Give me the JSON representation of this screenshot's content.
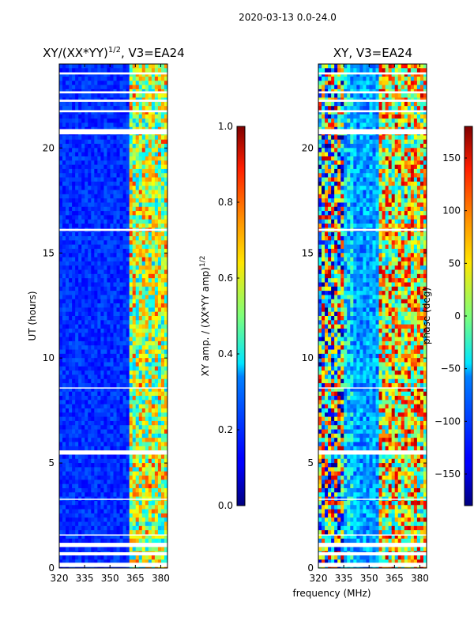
{
  "chart_data": [
    {
      "type": "heatmap",
      "id": "left",
      "suptitle": "2020-03-13 0.0-24.0",
      "title": "XY/(XX*YY)^1/2, V3=EA24",
      "xlabel": "",
      "ylabel": "UT (hours)",
      "xlim": [
        320,
        384
      ],
      "ylim": [
        0,
        24
      ],
      "xticks": [
        320,
        335,
        350,
        365,
        380
      ],
      "yticks": [
        0,
        5,
        10,
        15,
        20
      ],
      "colorbar": {
        "label": "XY amp. / (XX*YY amp)^1/2",
        "range": [
          0.0,
          1.0
        ],
        "ticks": [
          "0.0",
          "0.2",
          "0.4",
          "0.6",
          "0.8",
          "1.0"
        ],
        "colormap": "jet"
      },
      "flagged_hours": [
        [
          0.05,
          0.25
        ],
        [
          0.6,
          0.75
        ],
        [
          1.0,
          1.2
        ],
        [
          1.55,
          1.6
        ],
        [
          3.25,
          3.3
        ],
        [
          5.4,
          5.6
        ],
        [
          8.55,
          8.6
        ],
        [
          16.05,
          16.15
        ],
        [
          20.65,
          20.9
        ],
        [
          21.7,
          21.8
        ],
        [
          22.2,
          22.3
        ],
        [
          22.6,
          22.7
        ],
        [
          23.5,
          23.6
        ]
      ]
    },
    {
      "type": "heatmap",
      "id": "right",
      "title": "XY, V3=EA24",
      "xlabel": "frequency (MHz)",
      "ylabel": "",
      "xlim": [
        320,
        384
      ],
      "ylim": [
        0,
        24
      ],
      "xticks": [
        320,
        335,
        350,
        365,
        380
      ],
      "yticks": [
        0,
        5,
        10,
        15,
        20
      ],
      "colorbar": {
        "label": "phase (deg)",
        "range": [
          -180,
          180
        ],
        "ticks": [
          "-150",
          "-100",
          "-50",
          "0",
          "50",
          "100",
          "150"
        ],
        "colormap": "jet"
      },
      "flagged_hours": [
        [
          0.05,
          0.25
        ],
        [
          0.6,
          0.75
        ],
        [
          1.0,
          1.2
        ],
        [
          1.55,
          1.6
        ],
        [
          3.25,
          3.3
        ],
        [
          5.4,
          5.6
        ],
        [
          8.55,
          8.6
        ],
        [
          16.05,
          16.15
        ],
        [
          20.65,
          20.9
        ],
        [
          21.7,
          21.8
        ],
        [
          22.2,
          22.3
        ],
        [
          22.6,
          22.7
        ],
        [
          23.5,
          23.6
        ]
      ]
    }
  ]
}
